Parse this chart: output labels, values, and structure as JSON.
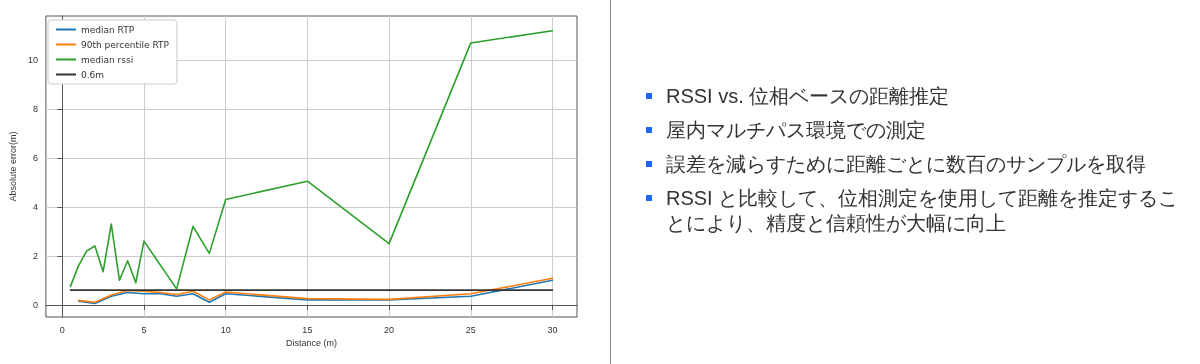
{
  "chart_data": [
    {
      "type": "line",
      "xlabel": "Distance (m)",
      "ylabel": "Absolute error(m)",
      "xlim": [
        -1,
        31.5
      ],
      "ylim": [
        -0.5,
        11.8
      ],
      "xticks": [
        0,
        5,
        10,
        15,
        20,
        25,
        30
      ],
      "yticks": [
        0,
        2,
        4,
        6,
        8,
        10
      ],
      "grid": true,
      "legend": "top left",
      "marker": "none",
      "line_style": "solid",
      "series": [
        {
          "name": "median RTP",
          "color": "#1f77b4",
          "x": [
            1,
            2,
            3,
            4,
            5,
            6,
            7,
            8,
            9,
            10,
            15,
            20,
            25,
            30
          ],
          "values": [
            0.15,
            0.05,
            0.35,
            0.5,
            0.45,
            0.45,
            0.35,
            0.45,
            0.1,
            0.45,
            0.2,
            0.2,
            0.35,
            1.0
          ]
        },
        {
          "name": "90th percentile RTP",
          "color": "#ff7f0e",
          "x": [
            1,
            2,
            3,
            4,
            5,
            6,
            7,
            8,
            9,
            10,
            15,
            20,
            25,
            30
          ],
          "values": [
            0.18,
            0.1,
            0.4,
            0.58,
            0.55,
            0.5,
            0.42,
            0.55,
            0.2,
            0.52,
            0.25,
            0.22,
            0.45,
            1.08
          ]
        },
        {
          "name": "median rssi",
          "color": "#2ca02c",
          "x": [
            0.5,
            1,
            1.5,
            2,
            2.5,
            3,
            3.5,
            4,
            4.5,
            5,
            7,
            8,
            9,
            10,
            15,
            20,
            25,
            30
          ],
          "values": [
            0.75,
            1.6,
            2.2,
            2.4,
            1.35,
            3.3,
            1.0,
            1.8,
            0.9,
            2.6,
            0.65,
            3.2,
            2.1,
            4.3,
            5.05,
            2.5,
            10.7,
            11.2
          ]
        },
        {
          "name": "0.6m",
          "color": "#333333",
          "x": [
            0.5,
            30
          ],
          "values": [
            0.6,
            0.6
          ]
        }
      ]
    },
    {
      "type": "other",
      "annotations": [
        "RSSI vs. 位相ベースの距離推定",
        "屋内マルチパス環境での測定",
        "誤差を減らすために距離ごとに数百のサンプルを取得",
        "RSSI と比較して、位相測定を使用して距離を推定することにより、精度と信頼性が大幅に向上"
      ]
    }
  ]
}
